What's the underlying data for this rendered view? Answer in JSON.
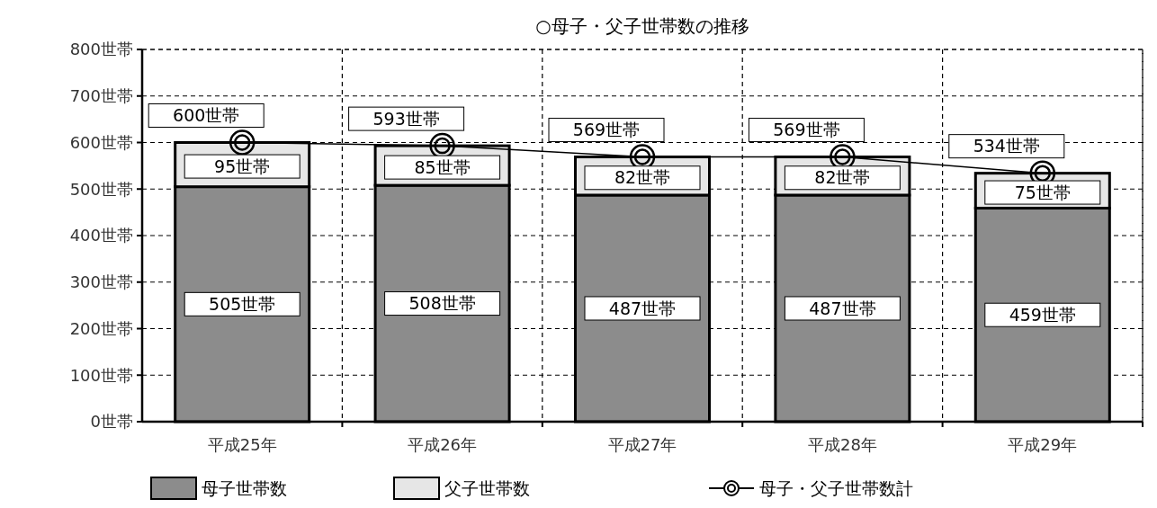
{
  "chart_data": {
    "type": "bar",
    "title": "○母子・父子世帯数の推移",
    "categories": [
      "平成25年",
      "平成26年",
      "平成27年",
      "平成28年",
      "平成29年"
    ],
    "stacked": true,
    "series": [
      {
        "name": "母子世帯数",
        "color": "#8c8c8c",
        "values": [
          505,
          508,
          487,
          487,
          459
        ],
        "value_labels": [
          "505世帯",
          "508世帯",
          "487世帯",
          "487世帯",
          "459世帯"
        ]
      },
      {
        "name": "父子世帯数",
        "color": "#e6e6e6",
        "values": [
          95,
          85,
          82,
          82,
          75
        ],
        "value_labels": [
          "95世帯",
          "85世帯",
          "82世帯",
          "82世帯",
          "75世帯"
        ]
      },
      {
        "name": "母子・父子世帯数計",
        "type": "line",
        "color": "#000000",
        "marker": "circle",
        "values": [
          600,
          593,
          569,
          569,
          534
        ],
        "value_labels": [
          "600世帯",
          "593世帯",
          "569世帯",
          "569世帯",
          "534世帯"
        ]
      }
    ],
    "ylim": [
      0,
      800
    ],
    "yticks": [
      {
        "value": 0,
        "label": "0世帯"
      },
      {
        "value": 100,
        "label": "100世帯"
      },
      {
        "value": 200,
        "label": "200世帯"
      },
      {
        "value": 300,
        "label": "300世帯"
      },
      {
        "value": 400,
        "label": "400世帯"
      },
      {
        "value": 500,
        "label": "500世帯"
      },
      {
        "value": 600,
        "label": "600世帯"
      },
      {
        "value": 700,
        "label": "700世帯"
      },
      {
        "value": 800,
        "label": "800世帯"
      }
    ],
    "grid": true,
    "legend": "bottom"
  }
}
